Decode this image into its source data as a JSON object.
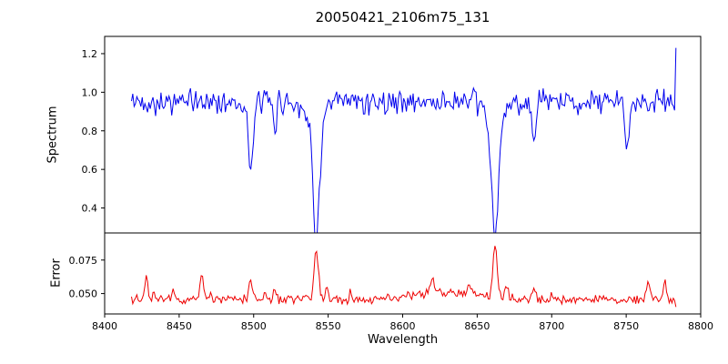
{
  "figure": {
    "background": "#ffffff",
    "frame_color": "#000000"
  },
  "chart_data": {
    "type": "line",
    "title": "20050421_2106m75_131",
    "xlabel": "Wavelength",
    "xlim": [
      8400,
      8800
    ],
    "x_ticks": [
      8400,
      8450,
      8500,
      8550,
      8600,
      8650,
      8700,
      8750,
      8800
    ],
    "x_tick_labels": [
      "8400",
      "8450",
      "8500",
      "8550",
      "8600",
      "8650",
      "8700",
      "8750",
      "8800"
    ],
    "x_range": [
      8418,
      8784
    ],
    "sample_step": 0.9,
    "seed": 42,
    "grid": false,
    "legend": "none",
    "panels": [
      {
        "name": "spectrum",
        "ylabel": "Spectrum",
        "color": "#0000ee",
        "ylim": [
          0.28,
          1.28
        ],
        "y_ticks": [
          0.4,
          0.6,
          0.8,
          1.0,
          1.2
        ],
        "y_tick_labels": [
          "0.4",
          "0.6",
          "0.8",
          "1.0",
          "1.2"
        ],
        "baseline": 0.95,
        "noise_amp": 0.08,
        "absorption_lines": [
          {
            "center": 8498,
            "depth": 0.38,
            "sigma": 1.6
          },
          {
            "center": 8514,
            "depth": 0.13,
            "sigma": 1.2
          },
          {
            "center": 8542,
            "depth": 0.6,
            "sigma": 2.2
          },
          {
            "center": 8542,
            "depth": 0.1,
            "sigma": 6.0
          },
          {
            "center": 8662,
            "depth": 0.62,
            "sigma": 2.2
          },
          {
            "center": 8662,
            "depth": 0.1,
            "sigma": 6.0
          },
          {
            "center": 8688,
            "depth": 0.2,
            "sigma": 1.4
          },
          {
            "center": 8751,
            "depth": 0.22,
            "sigma": 1.4
          }
        ],
        "edge_spike_value": 1.23
      },
      {
        "name": "error",
        "ylabel": "Error",
        "color": "#ee0000",
        "ylim": [
          0.0375,
          0.0925
        ],
        "y_ticks": [
          0.05,
          0.075
        ],
        "y_tick_labels": [
          "0.050",
          "0.075"
        ],
        "baseline": 0.0455,
        "noise_amp": 0.004,
        "spikes": [
          {
            "center": 8428,
            "amp": 0.017,
            "sigma": 1.0
          },
          {
            "center": 8433,
            "amp": 0.006,
            "sigma": 0.8
          },
          {
            "center": 8446,
            "amp": 0.007,
            "sigma": 0.8
          },
          {
            "center": 8465,
            "amp": 0.02,
            "sigma": 1.0
          },
          {
            "center": 8471,
            "amp": 0.007,
            "sigma": 0.8
          },
          {
            "center": 8498,
            "amp": 0.015,
            "sigma": 1.2
          },
          {
            "center": 8508,
            "amp": 0.006,
            "sigma": 0.8
          },
          {
            "center": 8514,
            "amp": 0.008,
            "sigma": 0.9
          },
          {
            "center": 8542,
            "amp": 0.039,
            "sigma": 1.4
          },
          {
            "center": 8549,
            "amp": 0.007,
            "sigma": 1.0
          },
          {
            "center": 8565,
            "amp": 0.005,
            "sigma": 0.8
          },
          {
            "center": 8590,
            "amp": 0.005,
            "sigma": 0.8
          },
          {
            "center": 8620,
            "amp": 0.009,
            "sigma": 1.5
          },
          {
            "center": 8630,
            "amp": 0.006,
            "sigma": 20.0
          },
          {
            "center": 8645,
            "amp": 0.007,
            "sigma": 1.0
          },
          {
            "center": 8662,
            "amp": 0.038,
            "sigma": 1.4
          },
          {
            "center": 8670,
            "amp": 0.01,
            "sigma": 1.0
          },
          {
            "center": 8688,
            "amp": 0.009,
            "sigma": 1.0
          },
          {
            "center": 8700,
            "amp": 0.005,
            "sigma": 0.8
          },
          {
            "center": 8765,
            "amp": 0.015,
            "sigma": 1.0
          },
          {
            "center": 8776,
            "amp": 0.016,
            "sigma": 1.0
          }
        ],
        "edge_end_value": 0.04
      }
    ]
  }
}
